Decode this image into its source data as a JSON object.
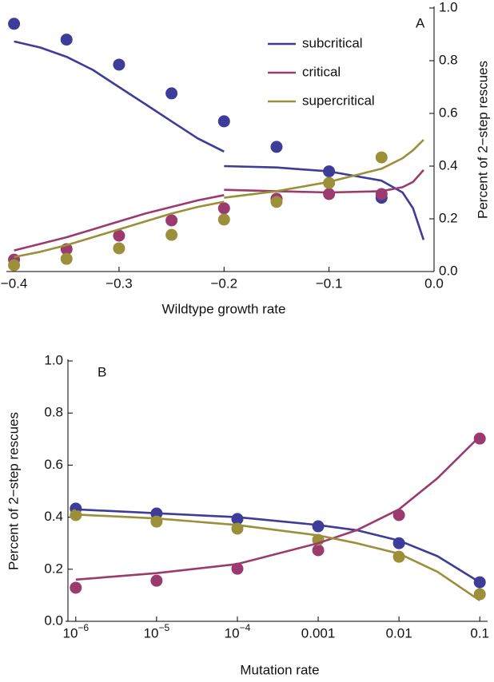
{
  "chart_data": [
    {
      "type": "scatter",
      "panel_label": "A",
      "xlabel": "Wildtype growth rate",
      "ylabel": "Percent of 2−step rescues",
      "x": [
        -0.4,
        -0.35,
        -0.3,
        -0.25,
        -0.2,
        -0.15,
        -0.1,
        -0.05
      ],
      "fit_x": [
        [
          -0.4,
          -0.375,
          -0.35,
          -0.325,
          -0.3,
          -0.275,
          -0.25,
          -0.225,
          -0.2
        ],
        [
          -0.2,
          -0.15,
          -0.1,
          -0.05,
          -0.03,
          -0.02,
          -0.01
        ]
      ],
      "series": [
        {
          "name": "subcritical",
          "color": "#3d3d99",
          "values": [
            0.94,
            0.88,
            0.785,
            0.676,
            0.57,
            0.473,
            0.38,
            0.28
          ],
          "fit_values": [
            [
              0.873,
              0.85,
              0.815,
              0.765,
              0.7,
              0.635,
              0.57,
              0.505,
              0.455
            ],
            [
              0.4,
              0.395,
              0.38,
              0.345,
              0.3,
              0.24,
              0.12
            ]
          ]
        },
        {
          "name": "critical",
          "color": "#9b3a6e",
          "values": [
            0.045,
            0.085,
            0.136,
            0.194,
            0.24,
            0.276,
            0.294,
            0.294
          ],
          "fit_values": [
            [
              0.08,
              0.105,
              0.13,
              0.16,
              0.19,
              0.22,
              0.245,
              0.27,
              0.29
            ],
            [
              0.31,
              0.305,
              0.3,
              0.305,
              0.32,
              0.34,
              0.385
            ]
          ]
        },
        {
          "name": "supercritical",
          "color": "#9b8f3a",
          "values": [
            0.024,
            0.048,
            0.088,
            0.139,
            0.197,
            0.264,
            0.336,
            0.433
          ],
          "fit_values": [
            [
              0.055,
              0.075,
              0.1,
              0.13,
              0.16,
              0.19,
              0.22,
              0.245,
              0.265
            ],
            [
              0.28,
              0.305,
              0.34,
              0.39,
              0.43,
              0.46,
              0.5
            ]
          ]
        }
      ],
      "xlim": [
        -0.405,
        0
      ],
      "ylim": [
        0,
        1
      ],
      "xticks": [
        {
          "value": -0.4,
          "label": "−0.4"
        },
        {
          "value": -0.3,
          "label": "−0.3"
        },
        {
          "value": -0.2,
          "label": "−0.2"
        },
        {
          "value": -0.1,
          "label": "−0.1"
        },
        {
          "value": 0,
          "label": "0.0"
        }
      ],
      "yticks": [
        {
          "value": 0,
          "label": "0.0"
        },
        0.2,
        0.4,
        0.6,
        0.8,
        {
          "value": 1,
          "label": "1.0"
        }
      ],
      "yaxis_side": "right",
      "legend": "upper right"
    },
    {
      "type": "scatter",
      "panel_label": "B",
      "xlabel": "Mutation rate",
      "ylabel": "Percent of 2−step rescues",
      "x": [
        1e-06,
        1e-05,
        0.0001,
        0.001,
        0.01,
        0.1
      ],
      "fit_x": [
        [
          1e-06,
          1e-05,
          0.0001,
          0.001,
          0.003,
          0.01,
          0.03,
          0.1
        ]
      ],
      "series": [
        {
          "color": "#3d3d99",
          "values": [
            0.433,
            0.414,
            0.393,
            0.365,
            0.3,
            0.15
          ],
          "fit_values": [
            [
              0.43,
              0.415,
              0.4,
              0.37,
              0.35,
              0.31,
              0.25,
              0.15
            ]
          ]
        },
        {
          "color": "#9b3a6e",
          "values": [
            0.129,
            0.156,
            0.202,
            0.273,
            0.408,
            0.702
          ],
          "fit_values": [
            [
              0.16,
              0.185,
              0.22,
              0.3,
              0.35,
              0.43,
              0.55,
              0.71
            ]
          ]
        },
        {
          "color": "#9b8f3a",
          "values": [
            0.408,
            0.383,
            0.356,
            0.313,
            0.248,
            0.104
          ],
          "fit_values": [
            [
              0.41,
              0.395,
              0.37,
              0.33,
              0.3,
              0.26,
              0.19,
              0.08
            ]
          ]
        }
      ],
      "xlim": [
        8e-07,
        0.125
      ],
      "xscale": "log",
      "ylim": [
        0,
        1
      ],
      "xticks": [
        {
          "value": 1e-06,
          "label": "10",
          "exponent": "−6"
        },
        {
          "value": 1e-05,
          "label": "10",
          "exponent": "−5"
        },
        {
          "value": 0.0001,
          "label": "10",
          "exponent": "−4"
        },
        0.001,
        0.01,
        0.1
      ],
      "yticks": [
        {
          "value": 0,
          "label": "0.0"
        },
        0.2,
        0.4,
        0.6,
        0.8,
        {
          "value": 1,
          "label": "1.0"
        }
      ],
      "yaxis_side": "left"
    }
  ]
}
